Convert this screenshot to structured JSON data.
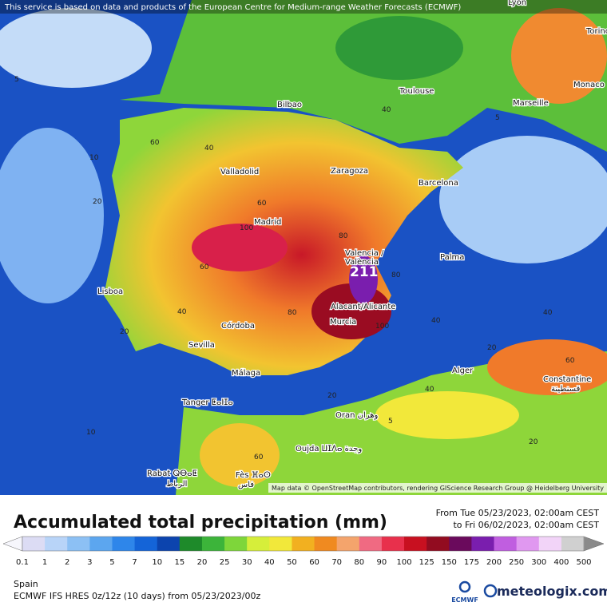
{
  "header": {
    "notice": "This service is based on data and products of the European Centre for Medium-range Weather Forecasts (ECMWF)"
  },
  "map": {
    "cities": [
      "Lyon",
      "Torino",
      "Monaco",
      "Marseille",
      "Toulouse",
      "Bilbao",
      "Zaragoza",
      "Barcelona",
      "Valladolid",
      "Madrid",
      "Valencia /",
      "València",
      "Palma",
      "Lisboa",
      "Alacant/Alicante",
      "Murcia",
      "Córdoba",
      "Sevilla",
      "Málaga",
      "Alger",
      "Constantine",
      "قسنطينة",
      "Tanger ⵟⴰⵏⵊⴰ",
      "Oran وهران",
      "Oujda ⵡⵊⴷⴰ وجدة",
      "Rabat ⵕⴱⴰⵟ",
      "الرباط",
      "Fès ⴼⴰⵙ",
      "فاس"
    ],
    "max_value": 211,
    "contour_labels": [
      5,
      5,
      10,
      20,
      40,
      40,
      60,
      60,
      80,
      80,
      100,
      100,
      40,
      20,
      60,
      40,
      80,
      20,
      40,
      60,
      10,
      20,
      40,
      5,
      20,
      60
    ],
    "attribution": "Map data © OpenStreetMap contributors, rendering GIScience Research Group @ Heidelberg University"
  },
  "legend": {
    "title": "Accumulated total precipitation (mm)",
    "period": [
      "From Tue 05/23/2023, 02:00am CEST",
      "to Fri 06/02/2023, 02:00am CEST"
    ],
    "labels": [
      0.1,
      1,
      2,
      3,
      5,
      7,
      10,
      15,
      20,
      25,
      30,
      40,
      50,
      60,
      70,
      80,
      90,
      100,
      125,
      150,
      175,
      200,
      250,
      300,
      400,
      500
    ],
    "colors": [
      "#dcdcf4",
      "#b8d4f8",
      "#8cc0f4",
      "#5ca6ef",
      "#2e86ea",
      "#1464d8",
      "#0c44ae",
      "#1e8a2a",
      "#3cb43a",
      "#7ed63a",
      "#d6ee3a",
      "#f2e83a",
      "#f2b020",
      "#f08a20",
      "#f4a46c",
      "#f06a82",
      "#e8304c",
      "#c81020",
      "#920c20",
      "#6a0a5c",
      "#7a1eae",
      "#c05ee0",
      "#e098f0",
      "#f2d4f8",
      "#d0d0d0"
    ]
  },
  "footer": {
    "region": "Spain",
    "model": "ECMWF IFS HRES 0z/12z (10 days) from  05/23/2023/00z",
    "ecmwf": "ECMWF",
    "brand": "meteologix.com"
  }
}
